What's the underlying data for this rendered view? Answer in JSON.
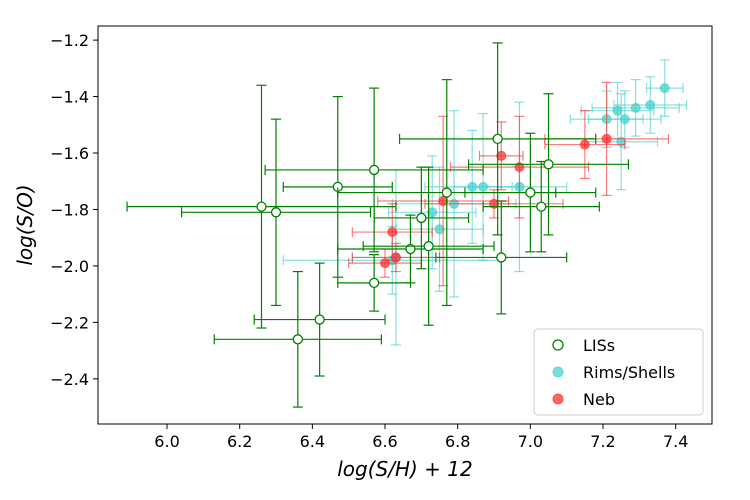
{
  "chart_data": {
    "type": "scatter",
    "title": "",
    "xlabel": "log(S/H) + 12",
    "ylabel": "log(S/O)",
    "xlim": [
      5.81,
      7.5
    ],
    "ylim": [
      -2.56,
      -1.15
    ],
    "xticks": [
      6.0,
      6.2,
      6.4,
      6.6,
      6.8,
      7.0,
      7.2,
      7.4
    ],
    "yticks": [
      -2.4,
      -2.2,
      -2.0,
      -1.8,
      -1.6,
      -1.4,
      -1.2
    ],
    "xtick_labels": [
      "6.0",
      "6.2",
      "6.4",
      "6.6",
      "6.8",
      "7.0",
      "7.2",
      "7.4"
    ],
    "ytick_labels": [
      "−2.4",
      "−2.2",
      "−2.0",
      "−1.8",
      "−1.6",
      "−1.4",
      "−1.2"
    ],
    "grid": false,
    "legend_position": "bottom-right",
    "series": [
      {
        "name": "LISs",
        "color": "#008000",
        "marker": "open-circle",
        "points": [
          {
            "x": 6.26,
            "y": -1.79,
            "xerr": 0.37,
            "yerr": 0.43
          },
          {
            "x": 6.3,
            "y": -1.81,
            "xerr": 0.26,
            "yerr": 0.33
          },
          {
            "x": 6.36,
            "y": -2.26,
            "xerr": 0.23,
            "yerr": 0.24
          },
          {
            "x": 6.42,
            "y": -2.19,
            "xerr": 0.18,
            "yerr": 0.2
          },
          {
            "x": 6.47,
            "y": -1.72,
            "xerr": 0.15,
            "yerr": 0.32
          },
          {
            "x": 6.57,
            "y": -1.66,
            "xerr": 0.3,
            "yerr": 0.29
          },
          {
            "x": 6.57,
            "y": -2.06,
            "xerr": 0.1,
            "yerr": 0.1
          },
          {
            "x": 6.67,
            "y": -1.94,
            "xerr": 0.2,
            "yerr": 0.12
          },
          {
            "x": 6.7,
            "y": -1.83,
            "xerr": 0.13,
            "yerr": 0.18
          },
          {
            "x": 6.72,
            "y": -1.93,
            "xerr": 0.18,
            "yerr": 0.28
          },
          {
            "x": 6.77,
            "y": -1.74,
            "xerr": 0.3,
            "yerr": 0.4
          },
          {
            "x": 6.91,
            "y": -1.55,
            "xerr": 0.27,
            "yerr": 0.34
          },
          {
            "x": 6.92,
            "y": -1.97,
            "xerr": 0.18,
            "yerr": 0.2
          },
          {
            "x": 7.0,
            "y": -1.74,
            "xerr": 0.18,
            "yerr": 0.21
          },
          {
            "x": 7.03,
            "y": -1.79,
            "xerr": 0.16,
            "yerr": 0.16
          },
          {
            "x": 7.05,
            "y": -1.64,
            "xerr": 0.22,
            "yerr": 0.25
          }
        ]
      },
      {
        "name": "Rims/Shells",
        "color": "#48d1cc",
        "marker": "filled-circle",
        "points": [
          {
            "x": 6.62,
            "y": -1.98,
            "xerr": 0.3,
            "yerr": 0.12
          },
          {
            "x": 6.63,
            "y": -1.97,
            "xerr": 0.12,
            "yerr": 0.31
          },
          {
            "x": 6.73,
            "y": -1.81,
            "xerr": 0.12,
            "yerr": 0.2
          },
          {
            "x": 6.75,
            "y": -1.87,
            "xerr": 0.12,
            "yerr": 0.22
          },
          {
            "x": 6.79,
            "y": -1.78,
            "xerr": 0.17,
            "yerr": 0.33
          },
          {
            "x": 6.84,
            "y": -1.72,
            "xerr": 0.13,
            "yerr": 0.2
          },
          {
            "x": 6.87,
            "y": -1.72,
            "xerr": 0.08,
            "yerr": 0.26
          },
          {
            "x": 6.97,
            "y": -1.72,
            "xerr": 0.13,
            "yerr": 0.3
          },
          {
            "x": 7.21,
            "y": -1.48,
            "xerr": 0.1,
            "yerr": 0.1
          },
          {
            "x": 7.24,
            "y": -1.45,
            "xerr": 0.1,
            "yerr": 0.1
          },
          {
            "x": 7.25,
            "y": -1.56,
            "xerr": 0.1,
            "yerr": 0.17
          },
          {
            "x": 7.26,
            "y": -1.48,
            "xerr": 0.1,
            "yerr": 0.1
          },
          {
            "x": 7.29,
            "y": -1.44,
            "xerr": 0.12,
            "yerr": 0.1
          },
          {
            "x": 7.33,
            "y": -1.43,
            "xerr": 0.1,
            "yerr": 0.1
          },
          {
            "x": 7.37,
            "y": -1.37,
            "xerr": 0.05,
            "yerr": 0.1
          }
        ]
      },
      {
        "name": "Neb",
        "color": "#ff3333",
        "marker": "filled-circle",
        "points": [
          {
            "x": 6.6,
            "y": -1.99,
            "xerr": 0.1,
            "yerr": 0.05
          },
          {
            "x": 6.62,
            "y": -1.88,
            "xerr": 0.11,
            "yerr": 0.1
          },
          {
            "x": 6.63,
            "y": -1.97,
            "xerr": 0.12,
            "yerr": 0.05
          },
          {
            "x": 6.76,
            "y": -1.77,
            "xerr": 0.18,
            "yerr": 0.3
          },
          {
            "x": 6.9,
            "y": -1.78,
            "xerr": 0.19,
            "yerr": 0.05
          },
          {
            "x": 6.92,
            "y": -1.61,
            "xerr": 0.06,
            "yerr": 0.12
          },
          {
            "x": 6.97,
            "y": -1.65,
            "xerr": 0.19,
            "yerr": 0.18
          },
          {
            "x": 7.15,
            "y": -1.57,
            "xerr": 0.11,
            "yerr": 0.12
          },
          {
            "x": 7.21,
            "y": -1.55,
            "xerr": 0.17,
            "yerr": 0.2
          }
        ]
      }
    ]
  }
}
